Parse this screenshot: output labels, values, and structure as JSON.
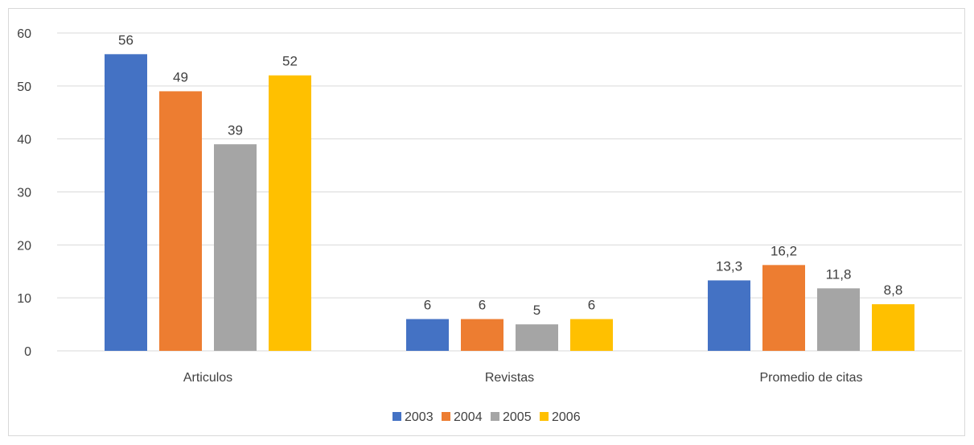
{
  "chart_data": {
    "type": "bar",
    "categories": [
      "Articulos",
      "Revistas",
      "Promedio de citas"
    ],
    "series": [
      {
        "name": "2003",
        "values": [
          56,
          6,
          13.3
        ],
        "labels": [
          "56",
          "6",
          "13,3"
        ],
        "color": "#4472C4"
      },
      {
        "name": "2004",
        "values": [
          49,
          6,
          16.2
        ],
        "labels": [
          "49",
          "6",
          "16,2"
        ],
        "color": "#ED7D31"
      },
      {
        "name": "2005",
        "values": [
          39,
          5,
          11.8
        ],
        "labels": [
          "39",
          "5",
          "11,8"
        ],
        "color": "#A5A5A5"
      },
      {
        "name": "2006",
        "values": [
          52,
          6,
          8.8
        ],
        "labels": [
          "52",
          "6",
          "8,8"
        ],
        "color": "#FFC000"
      }
    ],
    "yticks": [
      0,
      10,
      20,
      30,
      40,
      50,
      60
    ],
    "ylim": [
      0,
      60
    ],
    "grid": true,
    "legend_position": "bottom",
    "title": "",
    "xlabel": "",
    "ylabel": ""
  },
  "colors": {
    "gridline": "#d9d9d9",
    "text": "#404040"
  }
}
